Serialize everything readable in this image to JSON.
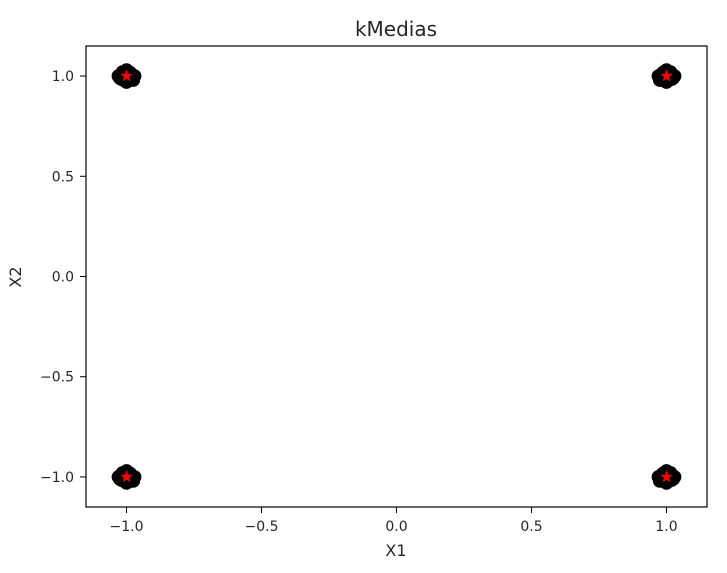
{
  "chart_data": {
    "type": "scatter",
    "title": "kMedias",
    "xlabel": "X1",
    "ylabel": "X2",
    "xlim": [
      -1.15,
      1.15
    ],
    "ylim": [
      -1.15,
      1.15
    ],
    "xticks": [
      -1.0,
      -0.5,
      0.0,
      0.5,
      1.0
    ],
    "xtick_labels": [
      "−1.0",
      "−0.5",
      "0.0",
      "0.5",
      "1.0"
    ],
    "yticks": [
      -1.0,
      -0.5,
      0.0,
      0.5,
      1.0
    ],
    "ytick_labels": [
      "−1.0",
      "−0.5",
      "0.0",
      "0.5",
      "1.0"
    ],
    "grid": false,
    "legend": "none",
    "series": [
      {
        "marker": "circle",
        "color": "#000000",
        "points": [
          [
            -1.0,
            1.0
          ],
          [
            -1.02,
            1.01
          ],
          [
            -0.98,
            0.99
          ],
          [
            -1.01,
            0.98
          ],
          [
            -0.99,
            1.02
          ],
          [
            -1.03,
            1.0
          ],
          [
            -0.97,
            1.0
          ],
          [
            -1.0,
            1.03
          ],
          [
            -1.0,
            0.97
          ],
          [
            -1.02,
            0.985
          ],
          [
            -0.985,
            1.015
          ],
          [
            -1.015,
            1.02
          ],
          [
            -0.975,
            0.98
          ],
          [
            -1.025,
            0.99
          ],
          [
            -0.995,
            0.975
          ],
          [
            1.0,
            1.0
          ],
          [
            1.02,
            1.01
          ],
          [
            0.98,
            0.99
          ],
          [
            1.01,
            0.98
          ],
          [
            0.99,
            1.02
          ],
          [
            1.03,
            1.0
          ],
          [
            0.97,
            1.0
          ],
          [
            1.0,
            1.03
          ],
          [
            1.0,
            0.97
          ],
          [
            1.02,
            0.985
          ],
          [
            0.985,
            1.015
          ],
          [
            1.015,
            1.02
          ],
          [
            0.975,
            0.98
          ],
          [
            1.025,
            0.99
          ],
          [
            0.995,
            0.975
          ],
          [
            -1.0,
            -1.0
          ],
          [
            -1.02,
            -0.99
          ],
          [
            -0.98,
            -1.01
          ],
          [
            -1.01,
            -1.02
          ],
          [
            -0.99,
            -0.98
          ],
          [
            -1.03,
            -1.0
          ],
          [
            -0.97,
            -1.0
          ],
          [
            -1.0,
            -0.97
          ],
          [
            -1.0,
            -1.03
          ],
          [
            -1.02,
            -1.015
          ],
          [
            -0.985,
            -0.985
          ],
          [
            -1.015,
            -0.98
          ],
          [
            -0.975,
            -1.02
          ],
          [
            -1.025,
            -1.01
          ],
          [
            -0.995,
            -1.025
          ],
          [
            1.0,
            -1.0
          ],
          [
            1.02,
            -0.99
          ],
          [
            0.98,
            -1.01
          ],
          [
            1.01,
            -1.02
          ],
          [
            0.99,
            -0.98
          ],
          [
            1.03,
            -1.0
          ],
          [
            0.97,
            -1.0
          ],
          [
            1.0,
            -0.97
          ],
          [
            1.0,
            -1.03
          ],
          [
            1.02,
            -1.015
          ],
          [
            0.985,
            -0.985
          ],
          [
            1.015,
            -0.98
          ],
          [
            0.975,
            -1.02
          ],
          [
            1.025,
            -1.01
          ],
          [
            0.995,
            -1.025
          ]
        ]
      },
      {
        "marker": "star",
        "color": "#ff0000",
        "points": [
          [
            -1.0,
            1.0
          ],
          [
            1.0,
            1.0
          ],
          [
            -1.0,
            -1.0
          ],
          [
            1.0,
            -1.0
          ]
        ]
      }
    ],
    "colors": {
      "axes": "#000000",
      "text": "#262626",
      "points": "#000000",
      "centroids": "#ff0000"
    }
  }
}
